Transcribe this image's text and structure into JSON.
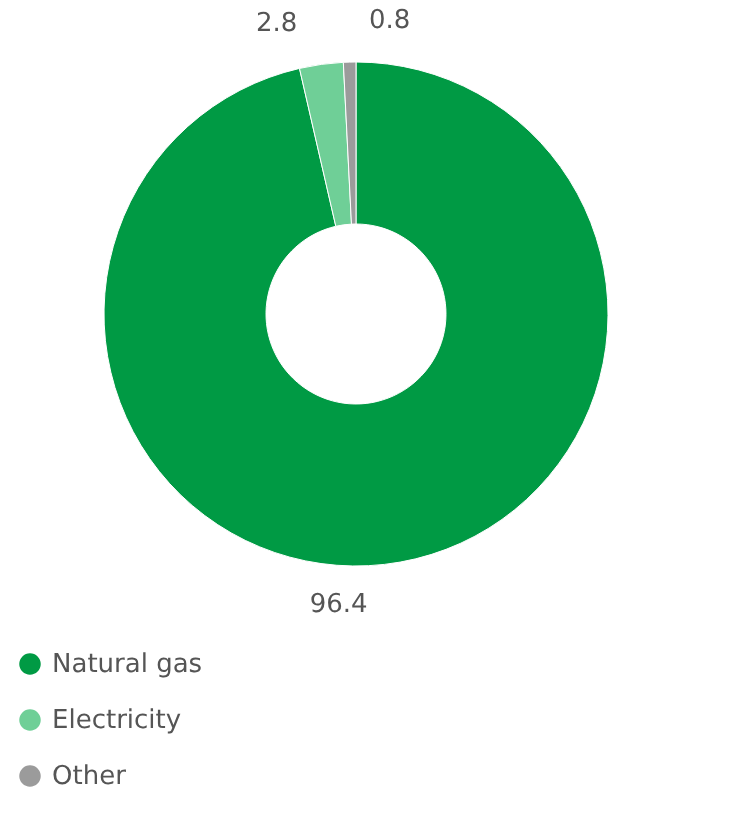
{
  "chart_data": {
    "type": "donut",
    "categories": [
      "Natural gas",
      "Electricity",
      "Other"
    ],
    "values": [
      96.4,
      2.8,
      0.8
    ],
    "colors": [
      "#009a44",
      "#6fcf97",
      "#9b9b9b"
    ],
    "data_labels": true,
    "legend": "bottom left"
  }
}
